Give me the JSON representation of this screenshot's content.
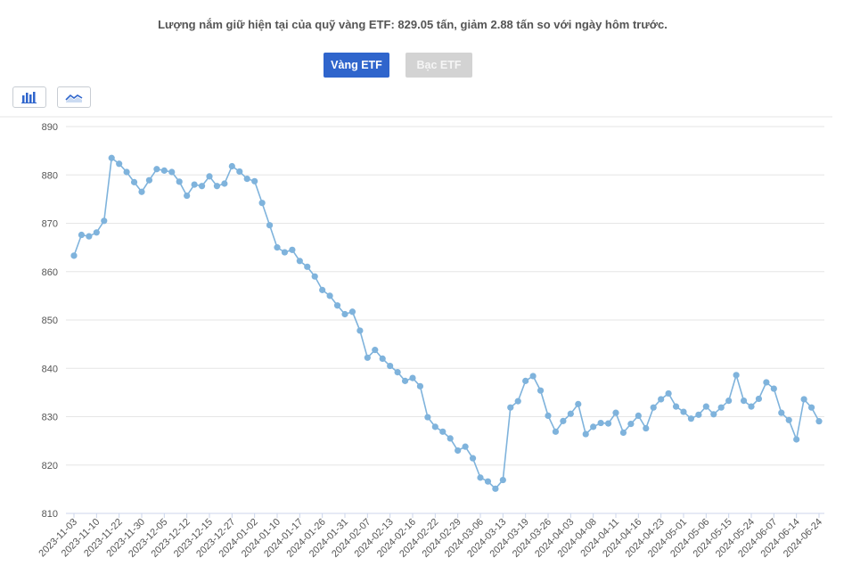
{
  "headline": "Lượng nắm giữ hiện tại của quỹ vàng ETF: 829.05 tấn, giảm 2.88 tấn so với ngày hôm trước.",
  "tabs": {
    "gold": "Vàng ETF",
    "silver": "Bạc ETF"
  },
  "chart_type_buttons": [
    "bar-chart-icon",
    "line-chart-icon"
  ],
  "colors": {
    "line": "#7fb3dc",
    "point": "#7fb3dc",
    "active_tab": "#2f65cc",
    "inactive_tab": "#d3d3d3",
    "grid": "#e6e6e6"
  },
  "chart_data": {
    "type": "line",
    "title": "",
    "xlabel": "",
    "ylabel": "",
    "ylim": [
      810,
      890
    ],
    "yticks": [
      810,
      820,
      830,
      840,
      850,
      860,
      870,
      880,
      890
    ],
    "grid": true,
    "legend": "none",
    "x_tick_labels": [
      "2023-11-03",
      "2023-11-10",
      "2023-11-22",
      "2023-11-30",
      "2023-12-05",
      "2023-12-12",
      "2023-12-15",
      "2023-12-27",
      "2024-01-02",
      "2024-01-10",
      "2024-01-17",
      "2024-01-26",
      "2024-01-31",
      "2024-02-07",
      "2024-02-13",
      "2024-02-16",
      "2024-02-22",
      "2024-02-29",
      "2024-03-06",
      "2024-03-13",
      "2024-03-19",
      "2024-03-26",
      "2024-04-03",
      "2024-04-08",
      "2024-04-11",
      "2024-04-16",
      "2024-04-23",
      "2024-05-01",
      "2024-05-06",
      "2024-05-15",
      "2024-05-24",
      "2024-06-07",
      "2024-06-14",
      "2024-06-24"
    ],
    "series": [
      {
        "values": [
          863.3,
          867.6,
          867.3,
          868.1,
          870.5,
          883.5,
          882.3,
          880.6,
          878.5,
          876.5,
          878.9,
          881.2,
          880.9,
          880.6,
          878.6,
          875.7,
          878.0,
          877.7,
          879.7,
          877.7,
          878.2,
          881.8,
          880.7,
          879.2,
          878.7,
          874.2,
          869.6,
          865.0,
          864.0,
          864.5,
          862.2,
          861.0,
          859.0,
          856.2,
          855.0,
          853.0,
          851.2,
          851.7,
          847.8,
          842.2,
          843.8,
          842.0,
          840.5,
          839.2,
          837.4,
          838.0,
          836.3,
          829.9,
          827.9,
          826.9,
          825.5,
          823.0,
          823.8,
          821.4,
          817.4,
          816.6,
          815.1,
          816.9,
          831.9,
          833.2,
          837.4,
          838.4,
          835.4,
          830.2,
          826.9,
          829.1,
          830.6,
          832.6,
          826.4,
          827.9,
          828.7,
          828.6,
          830.8,
          826.7,
          828.5,
          830.2,
          827.6,
          831.9,
          833.6,
          834.8,
          832.1,
          831.0,
          829.6,
          830.4,
          832.1,
          830.5,
          831.9,
          833.3,
          838.6,
          833.3,
          832.1,
          833.7,
          837.1,
          835.8,
          830.8,
          829.3,
          825.3,
          833.6,
          831.9,
          829.05
        ]
      }
    ]
  }
}
